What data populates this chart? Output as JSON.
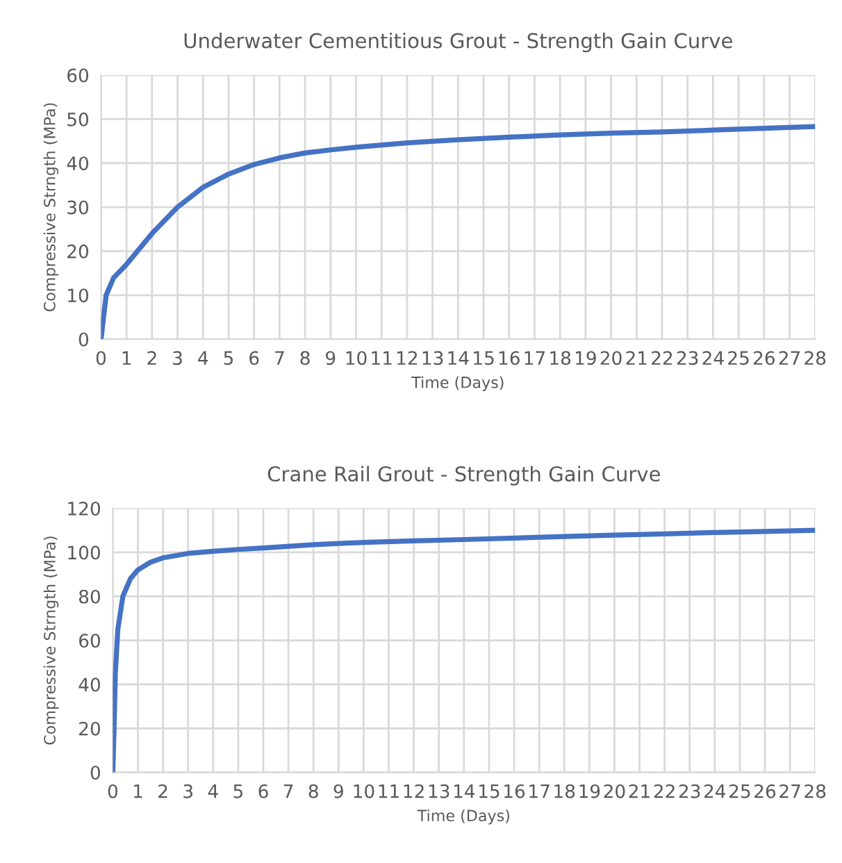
{
  "chart_data": [
    {
      "type": "line",
      "title": "Underwater Cementitious Grout - Strength Gain Curve",
      "xlabel": "Time (Days)",
      "ylabel": "Compressive Strngth (MPa)",
      "series": [
        {
          "color": "#4472c4",
          "x": [
            0,
            0.1,
            0.2,
            0.5,
            1,
            2,
            3,
            4,
            5,
            6,
            7,
            8,
            9,
            10,
            12,
            14,
            16,
            18,
            20,
            22,
            24,
            26,
            28
          ],
          "values": [
            0,
            5,
            10,
            14,
            17,
            24,
            30,
            34.5,
            37.5,
            39.7,
            41.2,
            42.3,
            43,
            43.6,
            44.6,
            45.3,
            45.9,
            46.4,
            46.8,
            47.1,
            47.5,
            47.9,
            48.3
          ]
        }
      ],
      "xlim": [
        0,
        28
      ],
      "xticks": [
        0,
        1,
        2,
        3,
        4,
        5,
        6,
        7,
        8,
        9,
        10,
        11,
        12,
        13,
        14,
        15,
        16,
        17,
        18,
        19,
        20,
        21,
        22,
        23,
        24,
        25,
        26,
        27,
        28
      ],
      "ylim": [
        0,
        60
      ],
      "yticks": [
        0,
        10,
        20,
        30,
        40,
        50,
        60
      ],
      "grid": true,
      "marker": "none",
      "line_style": "solid"
    },
    {
      "type": "line",
      "title": "Crane Rail Grout - Strength Gain Curve",
      "xlabel": "Time (Days)",
      "ylabel": "Compressive Strngth (MPa)",
      "series": [
        {
          "color": "#4472c4",
          "x": [
            0,
            0.05,
            0.1,
            0.2,
            0.4,
            0.7,
            1,
            1.5,
            2,
            3,
            4,
            5,
            6,
            8,
            10,
            12,
            14,
            16,
            18,
            20,
            22,
            24,
            26,
            28
          ],
          "values": [
            0,
            20,
            45,
            65,
            80,
            88,
            92,
            95.5,
            97.5,
            99.5,
            100.5,
            101.3,
            102,
            103.5,
            104.5,
            105.2,
            105.8,
            106.5,
            107.2,
            107.8,
            108.4,
            109,
            109.5,
            110
          ]
        }
      ],
      "xlim": [
        0,
        28
      ],
      "xticks": [
        0,
        1,
        2,
        3,
        4,
        5,
        6,
        7,
        8,
        9,
        10,
        11,
        12,
        13,
        14,
        15,
        16,
        17,
        18,
        19,
        20,
        21,
        22,
        23,
        24,
        25,
        26,
        27,
        28
      ],
      "ylim": [
        0,
        120
      ],
      "yticks": [
        0,
        20,
        40,
        60,
        80,
        100,
        120
      ],
      "grid": true,
      "marker": "none",
      "line_style": "solid"
    }
  ]
}
